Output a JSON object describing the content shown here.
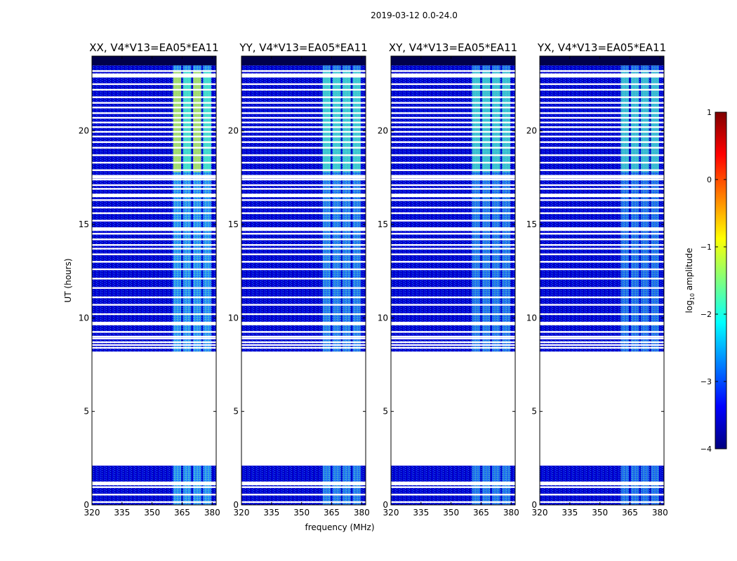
{
  "figure": {
    "suptitle": "2019-03-12 0.0-24.0",
    "xlabel": "frequency (MHz)",
    "ylabel": "UT (hours)"
  },
  "colorbar": {
    "label_prefix": "log",
    "label_sub": "10",
    "label_suffix": " amplitude",
    "ticks": [
      1,
      0,
      -1,
      -2,
      -3,
      -4
    ],
    "tick_labels": [
      "1",
      "0",
      "−1",
      "−2",
      "−3",
      "−4"
    ],
    "range": [
      -4,
      1
    ],
    "colormap": "jet",
    "jet_stops": [
      "#00007f",
      "#0000ff",
      "#007fff",
      "#00ffff",
      "#7fff7f",
      "#ffff00",
      "#ff7f00",
      "#ff0000",
      "#7f0000"
    ]
  },
  "chart_data": {
    "type": "heatmap",
    "x_range": [
      320,
      382
    ],
    "y_range": [
      0,
      24
    ],
    "x_ticks": [
      320,
      335,
      350,
      365,
      380
    ],
    "y_ticks": [
      0,
      5,
      10,
      15,
      20
    ],
    "colors": {
      "background": "#ffffff",
      "low": "#0000cc",
      "dark": "#00004a",
      "mid": "#1f6fff",
      "high": "#4cf0c2",
      "peak": "#c8f04a",
      "white_band": "#ffffff"
    },
    "panels": [
      {
        "title": "XX, V4*V13=EA05*EA11",
        "hot_intensity": 1.0
      },
      {
        "title": "YY, V4*V13=EA05*EA11",
        "hot_intensity": 0.85
      },
      {
        "title": "XY, V4*V13=EA05*EA11",
        "hot_intensity": 0.8
      },
      {
        "title": "YX, V4*V13=EA05*EA11",
        "hot_intensity": 0.75
      }
    ],
    "data_gap_hours": [
      2.1,
      8.2
    ],
    "hot_band_mhz": [
      360,
      380
    ],
    "hot_channels_mhz": [
      [
        360.5,
        364.5
      ],
      [
        365.5,
        369.5
      ],
      [
        370.5,
        374.5
      ],
      [
        375.5,
        379.5
      ]
    ],
    "strong_period_hours": [
      17.8,
      23.2
    ],
    "flagged_hours": [
      0.15,
      0.55,
      0.95,
      1.1,
      1.2,
      8.4,
      8.55,
      8.7,
      8.9,
      9.0,
      9.25,
      9.7,
      10.2,
      10.7,
      11.1,
      11.6,
      12.1,
      12.6,
      13.0,
      13.4,
      13.7,
      13.9,
      14.2,
      14.5,
      14.7,
      14.75,
      15.2,
      15.6,
      15.9,
      16.3,
      16.55,
      16.9,
      17.1,
      17.4,
      17.55,
      17.9,
      18.3,
      18.7,
      19.1,
      19.4,
      19.7,
      19.95,
      20.2,
      20.45,
      20.7,
      20.95,
      21.25,
      21.5,
      21.8,
      22.2,
      22.5,
      22.9,
      23.2
    ]
  }
}
